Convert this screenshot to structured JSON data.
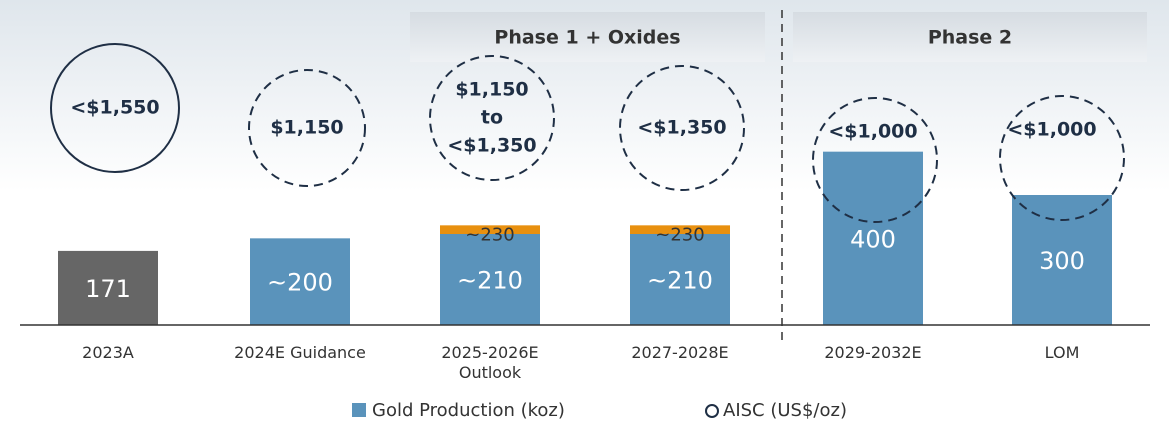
{
  "chart_data": {
    "type": "bar",
    "categories": [
      "2023A",
      "2024E Guidance",
      "2025-2026E Outlook",
      "2027-2028E",
      "2029-2032E",
      "LOM"
    ],
    "series": [
      {
        "name": "Gold Production (koz)",
        "color": "#5a93bb",
        "colors": [
          "#666666",
          "#5a93bb",
          "#5a93bb",
          "#5a93bb",
          "#5a93bb",
          "#5a93bb"
        ],
        "values": [
          171,
          200,
          210,
          210,
          400,
          300
        ],
        "value_labels": [
          "171",
          "~200",
          "~210",
          "~210",
          "400",
          "300"
        ]
      },
      {
        "color": "#e8900f",
        "values": [
          null,
          null,
          20,
          20,
          null,
          null
        ]
      }
    ],
    "totals": {
      "values": [
        null,
        null,
        230,
        230,
        null,
        null
      ],
      "value_labels": [
        null,
        null,
        "~230",
        "~230",
        null,
        null
      ]
    },
    "aisc": {
      "name": "AISC (US$/oz)",
      "dashed": [
        false,
        true,
        true,
        true,
        true,
        true
      ],
      "labels": [
        [
          "<$1,550"
        ],
        [
          "$1,150"
        ],
        [
          "$1,150",
          "to",
          "<$1,350"
        ],
        [
          "<$1,350"
        ],
        [
          "<$1,000"
        ],
        [
          "<$1,000"
        ]
      ]
    },
    "phases": [
      {
        "label": "Phase 1 + Oxides",
        "from": 2,
        "to": 3
      },
      {
        "label": "Phase 2",
        "from": 4,
        "to": 5
      }
    ],
    "ylim": [
      0,
      750
    ]
  }
}
